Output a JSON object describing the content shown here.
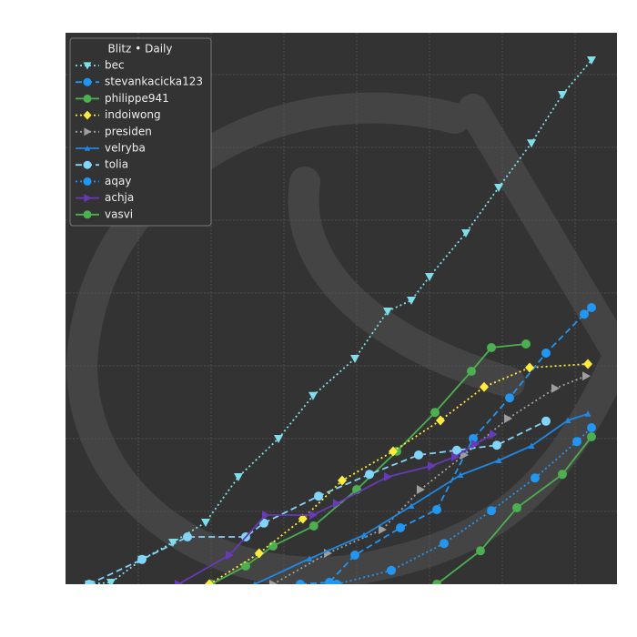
{
  "chart_data": {
    "type": "line",
    "legend_title": "Blitz • Daily",
    "xlim": [
      0,
      75.75
    ],
    "ylim": [
      0,
      75.75
    ],
    "xticks": [
      10,
      20,
      30,
      40,
      50,
      60,
      70
    ],
    "yticks": [
      10,
      20,
      30,
      40,
      50,
      60,
      70
    ],
    "tick_labels": false,
    "grid": true,
    "legend": "upper left",
    "series": [
      {
        "name": "bec",
        "color": "#80deea",
        "style": "dotted",
        "marker": "triangle-down",
        "x": [
          3.25,
          6.25,
          10.5,
          14.75,
          19.25,
          23.75,
          29.25,
          34,
          39.75,
          44.25,
          47.5,
          50,
          55,
          59.5,
          64,
          68.25,
          72.25
        ],
        "values": [
          0,
          0.25,
          3.4,
          5.75,
          8.5,
          14.75,
          20,
          25.9,
          31,
          37.5,
          39,
          42.25,
          48.25,
          54.5,
          60.6,
          67.25,
          72
        ]
      },
      {
        "name": "stevankacicka123",
        "color": "#2196f3",
        "style": "dashed",
        "marker": "circle",
        "x": [
          32.25,
          36.25,
          39.75,
          46,
          51,
          56,
          61,
          66,
          71.25,
          72.25
        ],
        "values": [
          0,
          0.25,
          4,
          7.75,
          10.25,
          20,
          25.6,
          31.75,
          37.1,
          38
        ]
      },
      {
        "name": "philippe941",
        "color": "#4caf50",
        "style": "solid",
        "marker": "circle",
        "x": [
          20,
          24.75,
          28.5,
          34.1,
          40,
          45.5,
          50.75,
          55.75,
          58.5,
          63.25
        ],
        "values": [
          0,
          2.5,
          5.25,
          8,
          13,
          18.25,
          23.6,
          29.25,
          32.5,
          33
        ]
      },
      {
        "name": "indoiwong",
        "color": "#ffeb3b",
        "style": "dotted",
        "marker": "diamond",
        "x": [
          19.75,
          26.6,
          32.6,
          38,
          45,
          51.5,
          57.5,
          63.75,
          71.75
        ],
        "values": [
          0,
          4.25,
          9,
          14.25,
          18.25,
          22.5,
          27.1,
          29.75,
          30.25
        ]
      },
      {
        "name": "presiden",
        "color": "#9e9e9e",
        "style": "dotted",
        "marker": "triangle-right",
        "x": [
          28.5,
          36,
          43.5,
          48.75,
          54.75,
          60.75,
          67.25,
          71.5
        ],
        "values": [
          0,
          4.25,
          7.5,
          13,
          17.75,
          22.75,
          26.9,
          28.6
        ]
      },
      {
        "name": "velryba",
        "color": "#1e88e5",
        "style": "solid",
        "marker": "triangle-up",
        "x": [
          26,
          33.5,
          41,
          47.5,
          54.25,
          59.5,
          64,
          69,
          71.75
        ],
        "values": [
          0,
          3.5,
          6.75,
          10.75,
          15,
          17,
          19,
          22.5,
          23.4
        ]
      },
      {
        "name": "tolia",
        "color": "#81d4fa",
        "style": "dashed",
        "marker": "circle",
        "x": [
          3.25,
          10.5,
          16.75,
          24.75,
          27.25,
          34.75,
          41.75,
          48.5,
          53.75,
          59.25,
          66
        ],
        "values": [
          0,
          3.4,
          6.5,
          6.5,
          8.4,
          12.1,
          15.1,
          17.75,
          18.4,
          19.1,
          22.4
        ]
      },
      {
        "name": "aqay",
        "color": "#2196f3",
        "style": "dotted",
        "marker": "circle",
        "x": [
          37.25,
          44.75,
          52,
          58.5,
          64.5,
          70.25,
          72.25
        ],
        "values": [
          0,
          1.9,
          5.6,
          10.1,
          14.6,
          19.6,
          21.5
        ]
      },
      {
        "name": "achja",
        "color": "#673ab7",
        "style": "solid",
        "marker": "triangle-right",
        "x": [
          15.5,
          22.5,
          27.5,
          34,
          37.25,
          44.25,
          50.25,
          53.5,
          56.25,
          58.75
        ],
        "values": [
          0,
          4,
          9.5,
          9.5,
          11.1,
          14.75,
          16.25,
          17.5,
          19.25,
          20.6
        ]
      },
      {
        "name": "vasvi",
        "color": "#4caf50",
        "style": "solid",
        "marker": "circle",
        "x": [
          51,
          57,
          62,
          68.25,
          72.25
        ],
        "values": [
          0,
          4.6,
          10.5,
          15.1,
          20.25
        ]
      }
    ]
  }
}
